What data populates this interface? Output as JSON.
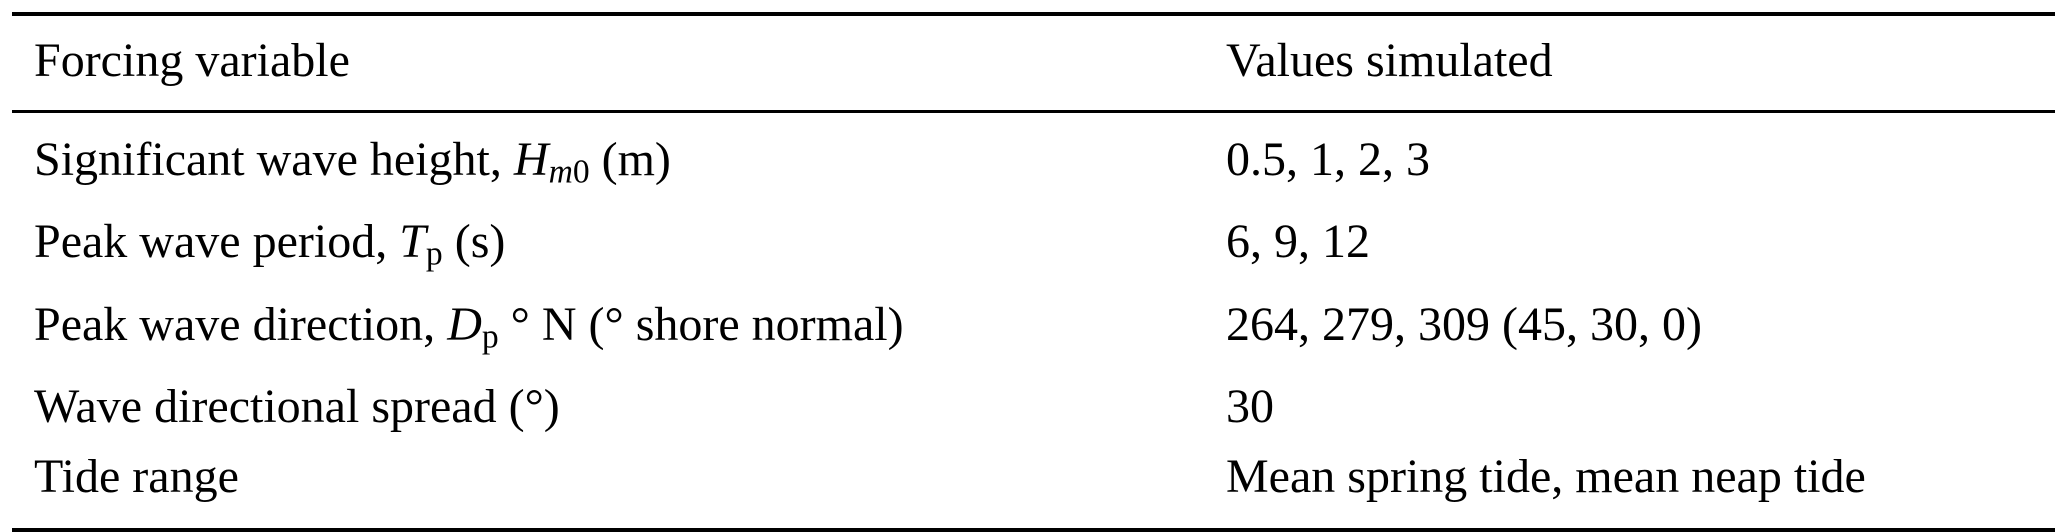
{
  "table": {
    "columns": [
      {
        "label": "Forcing variable"
      },
      {
        "label": "Values simulated"
      }
    ],
    "rows": [
      {
        "variable": [
          {
            "t": "Significant wave height, ",
            "s": "n"
          },
          {
            "t": "H",
            "s": "i"
          },
          {
            "t": "m",
            "s": "subi"
          },
          {
            "t": "0",
            "s": "sub"
          },
          {
            "t": " (m)",
            "s": "n"
          }
        ],
        "values": "0.5, 1, 2, 3"
      },
      {
        "variable": [
          {
            "t": "Peak wave period, ",
            "s": "n"
          },
          {
            "t": "T",
            "s": "i"
          },
          {
            "t": "p",
            "s": "sub"
          },
          {
            "t": " (s)",
            "s": "n"
          }
        ],
        "values": "6, 9, 12"
      },
      {
        "variable": [
          {
            "t": "Peak wave direction, ",
            "s": "n"
          },
          {
            "t": "D",
            "s": "i"
          },
          {
            "t": "p",
            "s": "sub"
          },
          {
            "t": " ° N (° shore normal)",
            "s": "n"
          }
        ],
        "values": "264, 279, 309 (45, 30, 0)"
      },
      {
        "variable": [
          {
            "t": "Wave directional spread (°)",
            "s": "n"
          }
        ],
        "values": "30"
      },
      {
        "variable": [
          {
            "t": "Tide range",
            "s": "n"
          }
        ],
        "values": "Mean spring tide, mean neap tide"
      }
    ]
  }
}
